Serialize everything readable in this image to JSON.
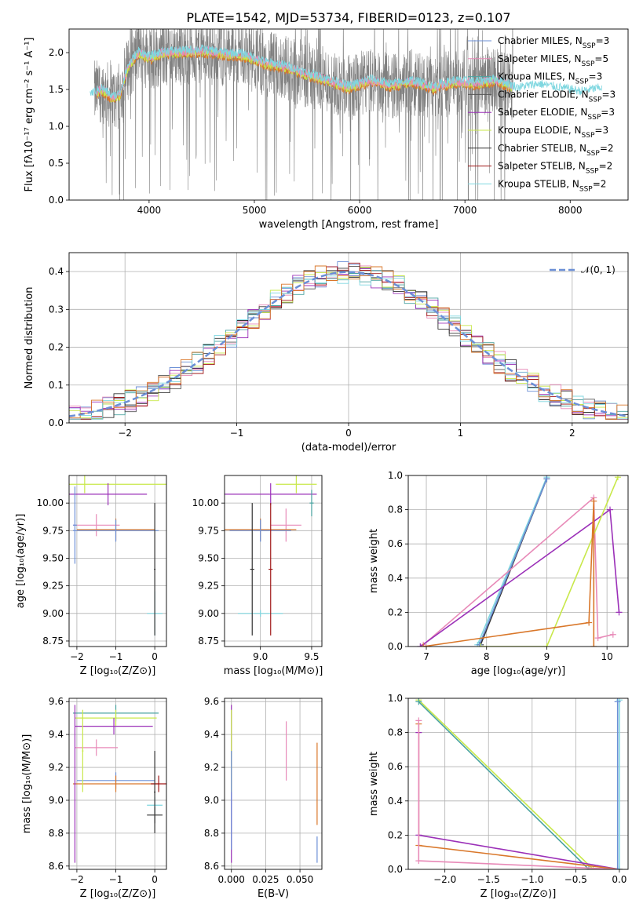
{
  "colors": {
    "chabrier_miles": "#6b8fd6",
    "salpeter_miles": "#e88ab8",
    "kroupa_miles": "#4aa3a0",
    "chabrier_elodie": "#555555",
    "salpeter_elodie": "#9b30b8",
    "kroupa_elodie": "#c8e84a",
    "chabrier_stelib": "#333333",
    "salpeter_stelib": "#a01818",
    "kroupa_stelib": "#7fd7e0",
    "orange": "#d9772a",
    "data_grey": "#808080",
    "normal_curve": "#6b8fd6",
    "grid": "#b0b0b0"
  },
  "chart_data": [
    {
      "id": "spectrum",
      "type": "line",
      "title": "PLATE=1542, MJD=53734, FIBERID=0123, z=0.107",
      "xlabel": "wavelength [Angstrom, rest frame]",
      "ylabel": "Flux [fλ10⁻¹⁷ erg cm⁻² s⁻¹ A⁻¹]",
      "xlim": [
        3240,
        8550
      ],
      "ylim": [
        0,
        2.32
      ],
      "xticks": [
        4000,
        5000,
        6000,
        7000,
        8000
      ],
      "yticks": [
        0.0,
        0.5,
        1.0,
        1.5,
        2.0
      ],
      "grid": false,
      "legend_position": "top-right",
      "legend": [
        {
          "label": "Chabrier MILES, N",
          "sub": "SSP",
          "tail": "=3",
          "color_key": "chabrier_miles"
        },
        {
          "label": "Salpeter MILES, N",
          "sub": "SSP",
          "tail": "=5",
          "color_key": "salpeter_miles"
        },
        {
          "label": "Kroupa MILES, N",
          "sub": "SSP",
          "tail": "=3",
          "color_key": "kroupa_miles"
        },
        {
          "label": "Chabrier ELODIE, N",
          "sub": "SSP",
          "tail": "=3",
          "color_key": "chabrier_elodie"
        },
        {
          "label": "Salpeter ELODIE, N",
          "sub": "SSP",
          "tail": "=3",
          "color_key": "salpeter_elodie"
        },
        {
          "label": "Kroupa ELODIE, N",
          "sub": "SSP",
          "tail": "=3",
          "color_key": "kroupa_elodie"
        },
        {
          "label": "Chabrier STELIB, N",
          "sub": "SSP",
          "tail": "=2",
          "color_key": "chabrier_stelib"
        },
        {
          "label": "Salpeter STELIB, N",
          "sub": "SSP",
          "tail": "=2",
          "color_key": "salpeter_stelib"
        },
        {
          "label": "Kroupa STELIB, N",
          "sub": "SSP",
          "tail": "=2",
          "color_key": "kroupa_stelib"
        }
      ],
      "continuum": {
        "x": [
          3450,
          3550,
          3650,
          3720,
          3800,
          3900,
          4000,
          4150,
          4300,
          4500,
          4700,
          4900,
          5100,
          5300,
          5500,
          5700,
          5900,
          6100,
          6300,
          6500,
          6700,
          6900,
          7100,
          7300,
          7500,
          7700,
          7900,
          8100,
          8300
        ],
        "y": [
          1.42,
          1.5,
          1.38,
          1.42,
          1.8,
          2.0,
          1.92,
          2.0,
          2.0,
          2.02,
          1.98,
          1.96,
          1.85,
          1.8,
          1.7,
          1.62,
          1.52,
          1.62,
          1.55,
          1.6,
          1.52,
          1.6,
          1.58,
          1.62,
          1.5,
          1.55,
          1.5,
          1.45,
          1.5
        ]
      }
    },
    {
      "id": "residuals",
      "type": "line",
      "xlabel": "(data-model)/error",
      "ylabel": "Normed distribution",
      "xlim": [
        -2.5,
        2.5
      ],
      "ylim": [
        0,
        0.45
      ],
      "xticks": [
        -2,
        -1,
        0,
        1,
        2
      ],
      "yticks": [
        0.0,
        0.1,
        0.2,
        0.3,
        0.4
      ],
      "grid": true,
      "legend_position": "top-right",
      "legend_label": "𝒩(0, 1)",
      "bin_width": 0.1
    },
    {
      "id": "age_vs_Z",
      "type": "scatter",
      "xlabel": "Z [log₁₀(Z/Z⊙)]",
      "ylabel": "age  [log₁₀(age/yr)]",
      "xlim": [
        -2.2,
        0.3
      ],
      "ylim": [
        8.7,
        10.25
      ],
      "xticks": [
        -2,
        -1,
        0
      ],
      "yticks": [
        8.75,
        9.0,
        9.25,
        9.5,
        9.75,
        10.0
      ],
      "grid": true,
      "points": [
        {
          "x": -1.8,
          "y": 10.17,
          "xerr": 2.1,
          "yerr": 0.08,
          "color_key": "kroupa_elodie"
        },
        {
          "x": -1.2,
          "y": 10.08,
          "xerr": 1.0,
          "yerr": 0.1,
          "color_key": "salpeter_elodie"
        },
        {
          "x": -1.5,
          "y": 9.8,
          "xerr": 0.6,
          "yerr": 0.1,
          "color_key": "salpeter_miles"
        },
        {
          "x": -1.0,
          "y": 9.76,
          "xerr": 1.0,
          "yerr": 0.1,
          "color_key": "orange"
        },
        {
          "x": -1.0,
          "y": 9.75,
          "xerr": 1.1,
          "yerr": 0.1,
          "color_key": "chabrier_miles"
        },
        {
          "x": -2.05,
          "y": 9.8,
          "xerr": 0.05,
          "yerr": 0.35,
          "color_key": "chabrier_miles"
        },
        {
          "x": 0.0,
          "y": 9.0,
          "xerr": 0.2,
          "yerr": 0.2,
          "color_key": "kroupa_stelib"
        },
        {
          "x": 0.0,
          "y": 9.4,
          "xerr": 0.02,
          "yerr": 0.6,
          "color_key": "chabrier_stelib"
        }
      ]
    },
    {
      "id": "age_vs_mass",
      "type": "scatter",
      "xlabel": "mass [log₁₀(M/M⊙)]",
      "xlim": [
        8.65,
        9.6
      ],
      "ylim": [
        8.7,
        10.25
      ],
      "xticks": [
        9.0,
        9.5
      ],
      "yticks": [
        8.75,
        9.0,
        9.25,
        9.5,
        9.75,
        10.0
      ],
      "grid": true,
      "points": [
        {
          "x": 9.1,
          "y": 10.08,
          "xerr": 0.45,
          "yerr": 0.1,
          "color_key": "salpeter_elodie"
        },
        {
          "x": 9.35,
          "y": 10.17,
          "xerr": 0.2,
          "yerr": 0.08,
          "color_key": "kroupa_elodie"
        },
        {
          "x": 9.25,
          "y": 9.8,
          "xerr": 0.15,
          "yerr": 0.15,
          "color_key": "salpeter_miles"
        },
        {
          "x": 9.0,
          "y": 9.76,
          "xerr": 0.35,
          "yerr": 0.1,
          "color_key": "orange"
        },
        {
          "x": 9.0,
          "y": 9.75,
          "xerr": 0.3,
          "yerr": 0.1,
          "color_key": "chabrier_miles"
        },
        {
          "x": 9.0,
          "y": 9.0,
          "xerr": 0.22,
          "yerr": 0.03,
          "color_key": "kroupa_stelib"
        },
        {
          "x": 8.92,
          "y": 9.4,
          "xerr": 0.02,
          "yerr": 0.6,
          "color_key": "chabrier_stelib"
        },
        {
          "x": 9.1,
          "y": 9.4,
          "xerr": 0.02,
          "yerr": 0.6,
          "color_key": "salpeter_stelib"
        },
        {
          "x": 9.5,
          "y": 10.0,
          "xerr": 0.02,
          "yerr": 0.12,
          "color_key": "kroupa_miles"
        }
      ]
    },
    {
      "id": "weight_vs_age",
      "type": "line",
      "xlabel": "age  [log₁₀(age/yr)]",
      "ylabel": "mass weight",
      "xlim": [
        6.7,
        10.35
      ],
      "ylim": [
        0,
        1.0
      ],
      "xticks": [
        7,
        8,
        9,
        10
      ],
      "yticks": [
        0.0,
        0.2,
        0.4,
        0.6,
        0.8,
        1.0
      ],
      "grid": true,
      "series": [
        {
          "color_key": "kroupa_stelib",
          "x": [
            7.85,
            9.0
          ],
          "y": [
            0.01,
            0.99
          ]
        },
        {
          "color_key": "chabrier_stelib",
          "x": [
            7.9,
            9.0
          ],
          "y": [
            0.01,
            0.98
          ]
        },
        {
          "color_key": "chabrier_miles",
          "x": [
            7.88,
            9.0
          ],
          "y": [
            0.01,
            0.98
          ]
        },
        {
          "color_key": "salpeter_miles",
          "x": [
            6.95,
            9.78,
            9.85,
            10.1
          ],
          "y": [
            0.01,
            0.87,
            0.05,
            0.07
          ]
        },
        {
          "color_key": "salpeter_elodie",
          "x": [
            6.9,
            10.05,
            10.2
          ],
          "y": [
            0.0,
            0.8,
            0.2
          ]
        },
        {
          "color_key": "kroupa_elodie",
          "x": [
            7.9,
            9.0,
            10.18
          ],
          "y": [
            0.0,
            0.0,
            0.99
          ]
        },
        {
          "color_key": "orange",
          "x": [
            6.95,
            9.7,
            9.78,
            9.78
          ],
          "y": [
            0.0,
            0.14,
            0.85,
            0.0
          ]
        }
      ]
    },
    {
      "id": "mass_vs_Z",
      "type": "scatter",
      "xlabel": "Z [log₁₀(Z/Z⊙)]",
      "ylabel": "mass [log₁₀(M/M⊙)]",
      "xlim": [
        -2.2,
        0.3
      ],
      "ylim": [
        8.58,
        9.62
      ],
      "xticks": [
        -2,
        -1,
        0
      ],
      "yticks": [
        8.6,
        8.8,
        9.0,
        9.2,
        9.4,
        9.6
      ],
      "grid": true,
      "points": [
        {
          "x": -1.0,
          "y": 9.53,
          "xerr": 1.1,
          "yerr": 0.05,
          "color_key": "kroupa_miles"
        },
        {
          "x": -1.0,
          "y": 9.5,
          "xerr": 1.05,
          "yerr": 0.05,
          "color_key": "kroupa_elodie"
        },
        {
          "x": -1.05,
          "y": 9.45,
          "xerr": 1.0,
          "yerr": 0.05,
          "color_key": "salpeter_elodie"
        },
        {
          "x": -1.5,
          "y": 9.32,
          "xerr": 0.55,
          "yerr": 0.05,
          "color_key": "salpeter_miles"
        },
        {
          "x": -1.0,
          "y": 9.12,
          "xerr": 1.0,
          "yerr": 0.05,
          "color_key": "chabrier_miles"
        },
        {
          "x": -1.0,
          "y": 9.1,
          "xerr": 1.1,
          "yerr": 0.05,
          "color_key": "orange"
        },
        {
          "x": 0.0,
          "y": 8.97,
          "xerr": 0.2,
          "yerr": 0.05,
          "color_key": "kroupa_stelib"
        },
        {
          "x": 0.0,
          "y": 8.91,
          "xerr": 0.2,
          "yerr": 0.05,
          "color_key": "chabrier_stelib"
        },
        {
          "x": 0.1,
          "y": 9.1,
          "xerr": 0.2,
          "yerr": 0.05,
          "color_key": "salpeter_stelib"
        },
        {
          "x": -2.05,
          "y": 9.1,
          "xerr": 0.02,
          "yerr": 0.48,
          "color_key": "salpeter_elodie"
        },
        {
          "x": -1.85,
          "y": 9.3,
          "xerr": 0.02,
          "yerr": 0.25,
          "color_key": "kroupa_elodie"
        },
        {
          "x": 0.0,
          "y": 9.05,
          "xerr": 0.02,
          "yerr": 0.25,
          "color_key": "chabrier_stelib"
        }
      ]
    },
    {
      "id": "mass_vs_ebv",
      "type": "scatter",
      "xlabel": "E(B-V)",
      "xlim": [
        -0.005,
        0.066
      ],
      "ylim": [
        8.58,
        9.62
      ],
      "xticks": [
        0.0,
        0.025,
        0.05
      ],
      "yticks": [
        8.6,
        8.8,
        9.0,
        9.2,
        9.4,
        9.6
      ],
      "grid": true,
      "points": [
        {
          "x": 0.0,
          "y": 9.1,
          "xerr": 0,
          "yerr": 0.48,
          "color_key": "salpeter_elodie"
        },
        {
          "x": 0.0,
          "y": 9.3,
          "xerr": 0,
          "yerr": 0.25,
          "color_key": "kroupa_elodie"
        },
        {
          "x": 0.0,
          "y": 9.0,
          "xerr": 0,
          "yerr": 0.3,
          "color_key": "chabrier_miles"
        },
        {
          "x": 0.04,
          "y": 9.3,
          "xerr": 0,
          "yerr": 0.18,
          "color_key": "salpeter_miles"
        },
        {
          "x": 0.0625,
          "y": 9.1,
          "xerr": 0,
          "yerr": 0.25,
          "color_key": "orange"
        },
        {
          "x": 0.0625,
          "y": 8.7,
          "xerr": 0,
          "yerr": 0.08,
          "color_key": "chabrier_miles"
        }
      ]
    },
    {
      "id": "weight_vs_Z",
      "type": "line",
      "xlabel": "Z [log₁₀(Z/Z⊙)]",
      "ylabel": "mass weight",
      "xlim": [
        -2.42,
        0.1
      ],
      "ylim": [
        0,
        1.0
      ],
      "xticks": [
        -2.0,
        -1.5,
        -1.0,
        -0.5,
        0.0
      ],
      "yticks": [
        0.0,
        0.2,
        0.4,
        0.6,
        0.8,
        1.0
      ],
      "grid": true,
      "series": [
        {
          "color_key": "kroupa_elodie",
          "x": [
            -2.3,
            -0.3,
            -0.3,
            0.0
          ],
          "y": [
            0.99,
            0.0,
            0.0,
            0.0
          ]
        },
        {
          "color_key": "kroupa_miles",
          "x": [
            -2.3,
            -0.35
          ],
          "y": [
            0.98,
            0.0
          ]
        },
        {
          "color_key": "salpeter_elodie",
          "x": [
            -2.3,
            -2.3,
            0.0
          ],
          "y": [
            0.8,
            0.2,
            0.0
          ]
        },
        {
          "color_key": "orange",
          "x": [
            -2.3,
            -2.3,
            0.0
          ],
          "y": [
            0.85,
            0.14,
            0.0
          ]
        },
        {
          "color_key": "salpeter_miles",
          "x": [
            -2.3,
            -2.3,
            0.0
          ],
          "y": [
            0.87,
            0.05,
            0.0
          ]
        },
        {
          "color_key": "kroupa_stelib",
          "x": [
            0.0,
            0.0
          ],
          "y": [
            0.0,
            0.99
          ]
        },
        {
          "color_key": "chabrier_miles",
          "x": [
            -0.02,
            -0.02
          ],
          "y": [
            0.0,
            0.98
          ]
        }
      ]
    }
  ]
}
